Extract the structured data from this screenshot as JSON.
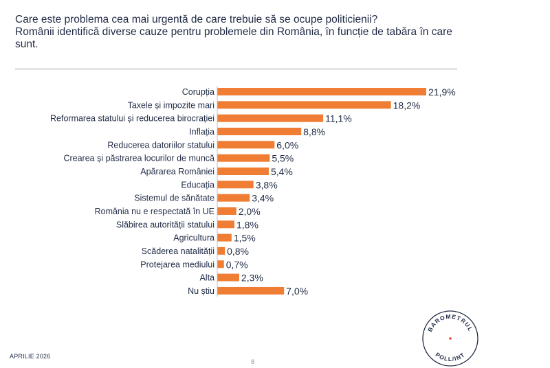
{
  "header": {
    "title": "Care este problema cea mai urgentă de care trebuie să se ocupe politicienii?",
    "subtitle_line1": "Românii identifică diverse cauze pentru problemele din România, în funcție de tabăra în care",
    "subtitle_line2": "sunt."
  },
  "chart_data": {
    "type": "bar",
    "orientation": "horizontal",
    "title": "Care este problema cea mai urgentă de care trebuie să se ocupe politicienii?",
    "categories": [
      "Corupția",
      "Taxele și impozite mari",
      "Reformarea statului și reducerea birocrației",
      "Inflația",
      "Reducerea datoriilor statului",
      "Crearea și păstrarea locurilor de muncă",
      "Apărarea României",
      "Educația",
      "Sistemul de sănătate",
      "România nu e respectată în UE",
      "Slăbirea autorității statului",
      "Agricultura",
      "Scăderea natalității",
      "Protejarea mediului",
      "Alta",
      "Nu știu"
    ],
    "values": [
      21.9,
      18.2,
      11.1,
      8.8,
      6.0,
      5.5,
      5.4,
      3.8,
      3.4,
      2.0,
      1.8,
      1.5,
      0.8,
      0.7,
      2.3,
      7.0
    ],
    "value_labels": [
      "21,9%",
      "18,2%",
      "11,1%",
      "8,8%",
      "6,0%",
      "5,5%",
      "5,4%",
      "3,8%",
      "3,4%",
      "2,0%",
      "1,8%",
      "1,5%",
      "0,8%",
      "0,7%",
      "2,3%",
      "7,0%"
    ],
    "unit": "%",
    "xlim": [
      0,
      21.9
    ],
    "grid": false,
    "bar_color": "#ef7d33"
  },
  "footer": {
    "date": "APRILIE 2026",
    "page": "8"
  },
  "logo": {
    "top_text": "BAROMETRUL",
    "bottom_text": "POLL/INT",
    "accent_color": "#e8452c",
    "ring_color": "#1f2a44"
  }
}
